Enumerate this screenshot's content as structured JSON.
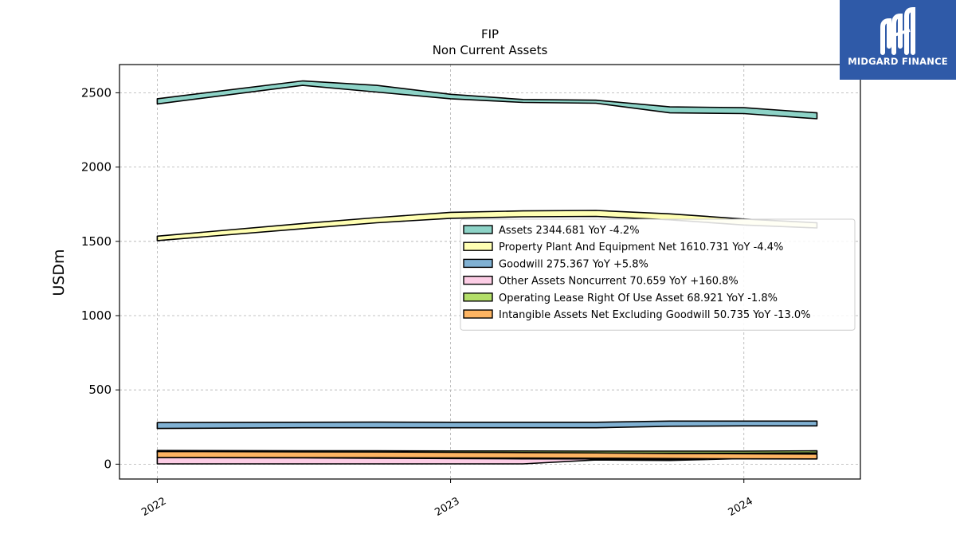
{
  "chart_data": {
    "type": "area",
    "title": "FIP",
    "subtitle": "Non Current  Assets",
    "ylabel": "USDm",
    "xlabel": "",
    "ylim": [
      -100,
      2690
    ],
    "xlim": [
      "2021-11-15",
      "2024-05-25"
    ],
    "yticks": [
      0,
      500,
      1000,
      1500,
      2000,
      2500
    ],
    "xticks": [
      {
        "date": "2022-01-01",
        "label": "2022"
      },
      {
        "date": "2023-01-01",
        "label": "2023"
      },
      {
        "date": "2024-01-01",
        "label": "2024"
      }
    ],
    "grid": true,
    "legend_position": "center-right",
    "dates": [
      "2022-01-01",
      "2022-07-01",
      "2022-10-01",
      "2023-01-01",
      "2023-04-01",
      "2023-07-01",
      "2023-10-01",
      "2024-01-01",
      "2024-04-01"
    ],
    "series": [
      {
        "name": "Assets",
        "legend": "Assets  2344.681 YoY -4.2%",
        "color": "#8dd3c7",
        "upper": [
          2460,
          2580,
          2550,
          2490,
          2455,
          2450,
          2405,
          2400,
          2365
        ],
        "lower": [
          2425,
          2550,
          2505,
          2460,
          2435,
          2430,
          2365,
          2360,
          2325
        ]
      },
      {
        "name": "Property Plant And Equipment Net",
        "legend": "Property Plant And Equipment Net  1610.731 YoY -4.4%",
        "color": "#ffffb3",
        "upper": [
          1535,
          1620,
          1660,
          1695,
          1705,
          1708,
          1685,
          1650,
          1625
        ],
        "lower": [
          1505,
          1585,
          1625,
          1655,
          1665,
          1668,
          1645,
          1610,
          1590
        ]
      },
      {
        "name": "Goodwill",
        "legend": "Goodwill  275.367 YoY +5.8%",
        "color": "#80b1d3",
        "upper": [
          280,
          282,
          283,
          282,
          282,
          282,
          290,
          290,
          290
        ],
        "lower": [
          240,
          245,
          245,
          245,
          245,
          245,
          255,
          258,
          258
        ]
      },
      {
        "name": "Other Assets Noncurrent",
        "legend": "Other Assets Noncurrent  70.659 YoY +160.8%",
        "color": "#fccde5",
        "upper": [
          45,
          42,
          40,
          38,
          36,
          35,
          32,
          42,
          48
        ],
        "lower": [
          2,
          2,
          2,
          2,
          2,
          28,
          25,
          38,
          45
        ]
      },
      {
        "name": "Operating Lease Right Of Use Asset",
        "legend": "Operating Lease Right Of Use Asset  68.921 YoY -1.8%",
        "color": "#b3de69",
        "upper": [
          92,
          90,
          90,
          89,
          89,
          88,
          88,
          88,
          90
        ],
        "lower": [
          78,
          76,
          76,
          75,
          75,
          74,
          74,
          74,
          76
        ]
      },
      {
        "name": "Intangible Assets Net Excluding Goodwill",
        "legend": "Intangible Assets Net Excluding Goodwill  50.735 YoY -13.0%",
        "color": "#fdb462",
        "upper": [
          85,
          83,
          82,
          80,
          78,
          76,
          72,
          70,
          68
        ],
        "lower": [
          45,
          44,
          43,
          42,
          41,
          40,
          38,
          36,
          35
        ]
      }
    ]
  },
  "logo": {
    "text": "MIDGARD FINANCE"
  }
}
